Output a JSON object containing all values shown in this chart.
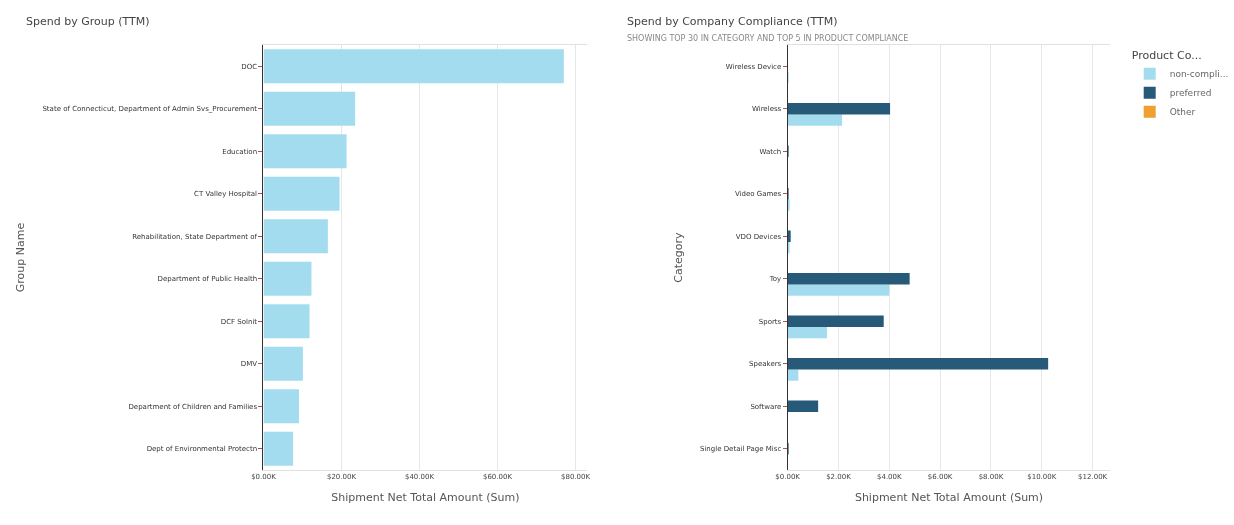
{
  "chart_data": [
    {
      "type": "bar",
      "title": "Spend by Group (TTM)",
      "orientation": "horizontal",
      "xlabel": "Shipment Net Total Amount (Sum)",
      "ylabel": "Group Name",
      "categories": [
        "DOC",
        "State of Connecticut, Department of Admin Svs_Procurement",
        "Education",
        "CT Valley Hospital",
        "Rehabilitation, State Department of",
        "Department of Public Health",
        "DCF Solnit",
        "DMV",
        "Department of Children and Families",
        "Dept of Environmental Protectn"
      ],
      "series": [
        {
          "color": "#a3dcef",
          "values": [
            77000,
            23500,
            21300,
            19500,
            16500,
            12300,
            11800,
            10100,
            9100,
            7600
          ]
        }
      ],
      "xlim": [
        0,
        83000
      ],
      "xticks": [
        {
          "value": 0,
          "label": "$0.00K"
        },
        {
          "value": 20000,
          "label": "$20.00K"
        },
        {
          "value": 40000,
          "label": "$40.00K"
        },
        {
          "value": 60000,
          "label": "$60.00K"
        },
        {
          "value": 80000,
          "label": "$80.00K"
        }
      ],
      "grid": "x",
      "legend": false
    },
    {
      "type": "bar",
      "title": "Spend by Company Compliance (TTM)",
      "subtitle": "SHOWING TOP 30 IN CATEGORY AND TOP 5 IN PRODUCT COMPLIANCE",
      "orientation": "horizontal",
      "xlabel": "Shipment Net Total Amount (Sum)",
      "ylabel": "Category",
      "legend_title": "Product Co...",
      "categories": [
        "Wireless Device",
        "Wireless",
        "Watch",
        "Video Games",
        "VDO Devices",
        "Toy",
        "Sports",
        "Speakers",
        "Software",
        "Single Detail Page Misc"
      ],
      "series": [
        {
          "name": "non-compli...",
          "color": "#a3dcef",
          "values": [
            30,
            2140,
            null,
            50,
            50,
            4000,
            1550,
            420,
            null,
            null
          ]
        },
        {
          "name": "preferred",
          "color": "#275a78",
          "values": [
            null,
            4030,
            30,
            20,
            120,
            4800,
            3780,
            10250,
            1200,
            30
          ]
        },
        {
          "name": "Other",
          "color": "#f0a030",
          "values": [
            null,
            null,
            null,
            null,
            null,
            null,
            null,
            null,
            null,
            null
          ]
        }
      ],
      "xlim": [
        0,
        12700
      ],
      "xticks": [
        {
          "value": 0,
          "label": "$0.00K"
        },
        {
          "value": 2000,
          "label": "$2.00K"
        },
        {
          "value": 4000,
          "label": "$4.00K"
        },
        {
          "value": 6000,
          "label": "$6.00K"
        },
        {
          "value": 8000,
          "label": "$8.00K"
        },
        {
          "value": 10000,
          "label": "$10.00K"
        },
        {
          "value": 12000,
          "label": "$12.00K"
        }
      ],
      "grid": "x",
      "legend": "top right"
    }
  ]
}
